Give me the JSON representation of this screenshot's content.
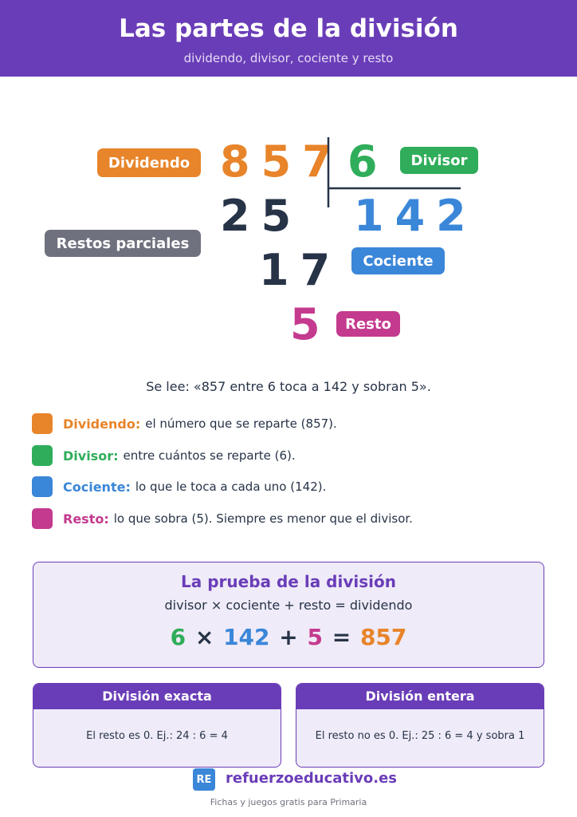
{
  "header": {
    "title": "Las partes de la división",
    "subtitle": "dividendo, divisor, cociente y resto"
  },
  "division": {
    "dividend": "857",
    "divisor": "6",
    "partial_1": "25",
    "quotient": "142",
    "partial_2": "17",
    "remainder": "5",
    "labels": {
      "dividend": "Dividendo",
      "divisor": "Divisor",
      "partial": "Restos parciales",
      "quotient": "Cociente",
      "remainder": "Resto"
    }
  },
  "reading": "Se lee: «857 entre 6 toca a 142 y sobran 5».",
  "definitions": [
    {
      "term": "Dividendo:",
      "text": "el número que se reparte (857)."
    },
    {
      "term": "Divisor:",
      "text": "entre cuántos se reparte (6)."
    },
    {
      "term": "Cociente:",
      "text": "lo que le toca a cada uno (142)."
    },
    {
      "term": "Resto:",
      "text": "lo que sobra (5). Siempre es menor que el divisor."
    }
  ],
  "proof": {
    "title": "La prueba de la división",
    "formula": "divisor × cociente + resto = dividendo",
    "example": [
      "6",
      "×",
      "142",
      "+",
      "5",
      "=",
      "857"
    ]
  },
  "cards": [
    {
      "title": "División exacta",
      "text": "El resto es 0.  Ej.: 24 : 6 = 4"
    },
    {
      "title": "División entera",
      "text": "El resto no es 0.  Ej.: 25 : 6 = 4 y sobra 1"
    }
  ],
  "footer": {
    "logo": "RE",
    "brand": "refuerzoeducativo.es",
    "tagline": "Fichas y juegos gratis para Primaria"
  }
}
